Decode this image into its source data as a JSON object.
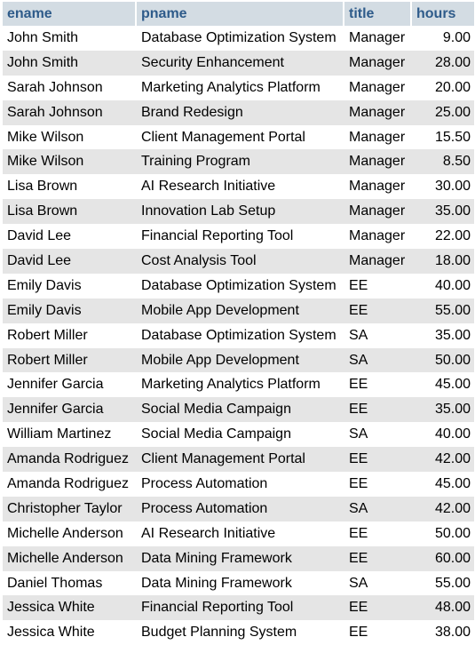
{
  "columns": {
    "ename": "ename",
    "pname": "pname",
    "title": "title",
    "hours": "hours"
  },
  "rows": [
    {
      "ename": "John Smith",
      "pname": "Database Optimization System",
      "title": "Manager",
      "hours": "9.00"
    },
    {
      "ename": "John Smith",
      "pname": "Security Enhancement",
      "title": "Manager",
      "hours": "28.00"
    },
    {
      "ename": "Sarah Johnson",
      "pname": "Marketing Analytics Platform",
      "title": "Manager",
      "hours": "20.00"
    },
    {
      "ename": "Sarah Johnson",
      "pname": "Brand Redesign",
      "title": "Manager",
      "hours": "25.00"
    },
    {
      "ename": "Mike Wilson",
      "pname": "Client Management Portal",
      "title": "Manager",
      "hours": "15.50"
    },
    {
      "ename": "Mike Wilson",
      "pname": "Training Program",
      "title": "Manager",
      "hours": "8.50"
    },
    {
      "ename": "Lisa Brown",
      "pname": "AI Research Initiative",
      "title": "Manager",
      "hours": "30.00"
    },
    {
      "ename": "Lisa Brown",
      "pname": "Innovation Lab Setup",
      "title": "Manager",
      "hours": "35.00"
    },
    {
      "ename": "David Lee",
      "pname": "Financial Reporting Tool",
      "title": "Manager",
      "hours": "22.00"
    },
    {
      "ename": "David Lee",
      "pname": "Cost Analysis Tool",
      "title": "Manager",
      "hours": "18.00"
    },
    {
      "ename": "Emily Davis",
      "pname": "Database Optimization System",
      "title": "EE",
      "hours": "40.00"
    },
    {
      "ename": "Emily Davis",
      "pname": "Mobile App Development",
      "title": "EE",
      "hours": "55.00"
    },
    {
      "ename": "Robert Miller",
      "pname": "Database Optimization System",
      "title": "SA",
      "hours": "35.00"
    },
    {
      "ename": "Robert Miller",
      "pname": "Mobile App Development",
      "title": "SA",
      "hours": "50.00"
    },
    {
      "ename": "Jennifer Garcia",
      "pname": "Marketing Analytics Platform",
      "title": "EE",
      "hours": "45.00"
    },
    {
      "ename": "Jennifer Garcia",
      "pname": "Social Media Campaign",
      "title": "EE",
      "hours": "35.00"
    },
    {
      "ename": "William Martinez",
      "pname": "Social Media Campaign",
      "title": "SA",
      "hours": "40.00"
    },
    {
      "ename": "Amanda Rodriguez",
      "pname": "Client Management Portal",
      "title": "EE",
      "hours": "42.00"
    },
    {
      "ename": "Amanda Rodriguez",
      "pname": "Process Automation",
      "title": "EE",
      "hours": "45.00"
    },
    {
      "ename": "Christopher Taylor",
      "pname": "Process Automation",
      "title": "SA",
      "hours": "42.00"
    },
    {
      "ename": "Michelle Anderson",
      "pname": "AI Research Initiative",
      "title": "EE",
      "hours": "50.00"
    },
    {
      "ename": "Michelle Anderson",
      "pname": "Data Mining Framework",
      "title": "EE",
      "hours": "60.00"
    },
    {
      "ename": "Daniel Thomas",
      "pname": "Data Mining Framework",
      "title": "SA",
      "hours": "55.00"
    },
    {
      "ename": "Jessica White",
      "pname": "Financial Reporting Tool",
      "title": "EE",
      "hours": "48.00"
    },
    {
      "ename": "Jessica White",
      "pname": "Budget Planning System",
      "title": "EE",
      "hours": "38.00"
    }
  ]
}
